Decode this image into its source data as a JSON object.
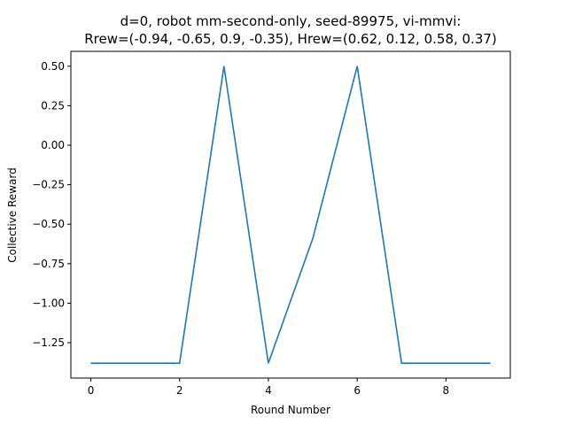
{
  "chart_data": {
    "type": "line",
    "title": [
      "d=0, robot mm-second-only, seed-89975, vi-mmvi:",
      "Rrew=(-0.94, -0.65, 0.9, -0.35), Hrew=(0.62, 0.12, 0.58, 0.37)"
    ],
    "xlabel": "Round Number",
    "ylabel": "Collective Reward",
    "x": [
      0,
      1,
      2,
      3,
      4,
      5,
      6,
      7,
      8,
      9
    ],
    "series": [
      {
        "values": [
          -1.38,
          -1.38,
          -1.38,
          0.5,
          -1.38,
          -0.59,
          0.5,
          -1.38,
          -1.38,
          -1.38
        ],
        "color": "#1f77b4"
      }
    ],
    "xlim": [
      -0.45,
      9.45
    ],
    "ylim": [
      -1.474,
      0.594
    ],
    "xticks": [
      0,
      2,
      4,
      6,
      8
    ],
    "xtick_labels": [
      "0",
      "2",
      "4",
      "6",
      "8"
    ],
    "yticks": [
      0.5,
      0.25,
      0.0,
      -0.25,
      -0.5,
      -0.75,
      -1.0,
      -1.25
    ],
    "ytick_labels": [
      "0.50",
      "0.25",
      "0.00",
      "−0.25",
      "−0.50",
      "−0.75",
      "−1.00",
      "−1.25"
    ],
    "grid": false,
    "legend": false
  }
}
